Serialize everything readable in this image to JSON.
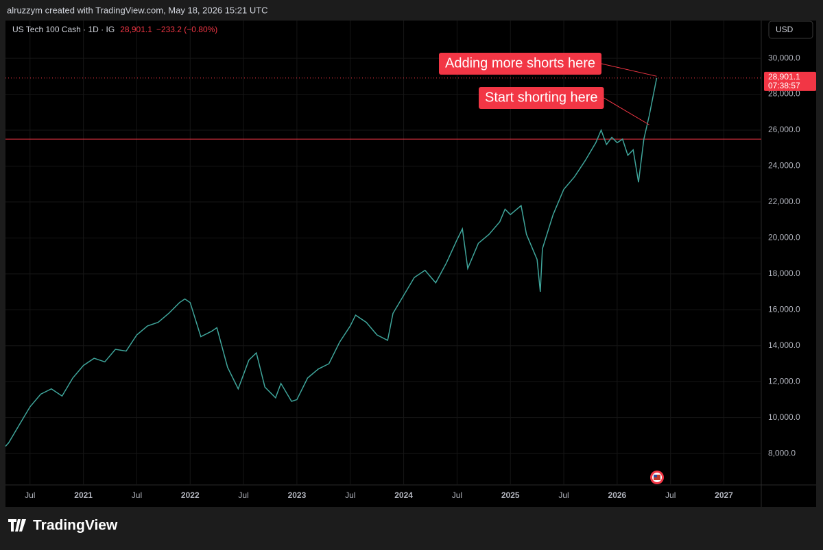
{
  "header": {
    "credit": "alruzzym created with TradingView.com, May 18, 2026 15:21 UTC"
  },
  "footer": {
    "brand": "TradingView"
  },
  "chart_data": {
    "type": "line",
    "title": "US Tech 100 Cash · 1D · IG",
    "change": "−233.2 (−0.80%)",
    "currency": "USD",
    "price_line": {
      "value": 28901.1,
      "label": "28,901.1",
      "countdown": "07:38:57",
      "color": "#f23645"
    },
    "level_line": {
      "value": 25500,
      "color": "#f23645"
    },
    "x": [
      2020.27,
      2020.3,
      2020.4,
      2020.5,
      2020.6,
      2020.7,
      2020.8,
      2020.9,
      2021.0,
      2021.1,
      2021.2,
      2021.3,
      2021.4,
      2021.5,
      2021.6,
      2021.7,
      2021.8,
      2021.9,
      2021.95,
      2022.0,
      2022.1,
      2022.2,
      2022.25,
      2022.35,
      2022.45,
      2022.55,
      2022.62,
      2022.7,
      2022.8,
      2022.85,
      2022.95,
      2023.0,
      2023.1,
      2023.2,
      2023.3,
      2023.4,
      2023.5,
      2023.55,
      2023.65,
      2023.75,
      2023.85,
      2023.9,
      2024.0,
      2024.1,
      2024.2,
      2024.3,
      2024.4,
      2024.5,
      2024.55,
      2024.6,
      2024.7,
      2024.8,
      2024.9,
      2024.95,
      2025.0,
      2025.1,
      2025.15,
      2025.25,
      2025.28,
      2025.3,
      2025.4,
      2025.5,
      2025.6,
      2025.7,
      2025.8,
      2025.85,
      2025.9,
      2025.95,
      2026.0,
      2026.05,
      2026.1,
      2026.15,
      2026.2,
      2026.25,
      2026.3,
      2026.37
    ],
    "series": [
      {
        "name": "US Tech 100 Cash",
        "color": "#3fa59b",
        "values": [
          8400,
          8600,
          9600,
          10600,
          11300,
          11600,
          11200,
          12200,
          12900,
          13300,
          13100,
          13800,
          13700,
          14600,
          15100,
          15300,
          15800,
          16400,
          16600,
          16400,
          14500,
          14800,
          15000,
          12800,
          11600,
          13200,
          13600,
          11700,
          11100,
          11900,
          10900,
          11000,
          12200,
          12700,
          13000,
          14200,
          15100,
          15700,
          15300,
          14600,
          14300,
          15800,
          16800,
          17800,
          18200,
          17500,
          18600,
          19900,
          20500,
          18300,
          19700,
          20200,
          20900,
          21600,
          21300,
          21800,
          20200,
          18800,
          17000,
          19400,
          21300,
          22700,
          23400,
          24300,
          25300,
          26000,
          25200,
          25600,
          25300,
          25500,
          24600,
          24900,
          23100,
          25500,
          26800,
          28901.1
        ]
      }
    ],
    "xlim": [
      2020.27,
      2027.35
    ],
    "ylim": [
      6250,
      32100
    ],
    "xticks": [
      {
        "value": 2020.5,
        "label": "Jul"
      },
      2021,
      {
        "value": 2021.5,
        "label": "Jul"
      },
      2022,
      {
        "value": 2022.5,
        "label": "Jul"
      },
      2023,
      {
        "value": 2023.5,
        "label": "Jul"
      },
      2024,
      {
        "value": 2024.5,
        "label": "Jul"
      },
      2025,
      {
        "value": 2025.5,
        "label": "Jul"
      },
      2026,
      {
        "value": 2026.5,
        "label": "Jul"
      },
      2027
    ],
    "yticks": [
      {
        "value": 8000,
        "label": "8,000.0"
      },
      {
        "value": 10000,
        "label": "10,000.0"
      },
      {
        "value": 12000,
        "label": "12,000.0"
      },
      {
        "value": 14000,
        "label": "14,000.0"
      },
      {
        "value": 16000,
        "label": "16,000.0"
      },
      {
        "value": 18000,
        "label": "18,000.0"
      },
      {
        "value": 20000,
        "label": "20,000.0"
      },
      {
        "value": 22000,
        "label": "22,000.0"
      },
      {
        "value": 24000,
        "label": "24,000.0"
      },
      {
        "value": 26000,
        "label": "26,000.0"
      },
      {
        "value": 28000,
        "label": "28,000.0"
      },
      {
        "value": 30000,
        "label": "30,000.0"
      }
    ],
    "grid": true,
    "annotations": [
      {
        "text": "Adding more shorts here",
        "x": 2026.37,
        "y": 29000
      },
      {
        "text": "Start shorting here",
        "x": 2026.3,
        "y": 26300
      }
    ]
  }
}
